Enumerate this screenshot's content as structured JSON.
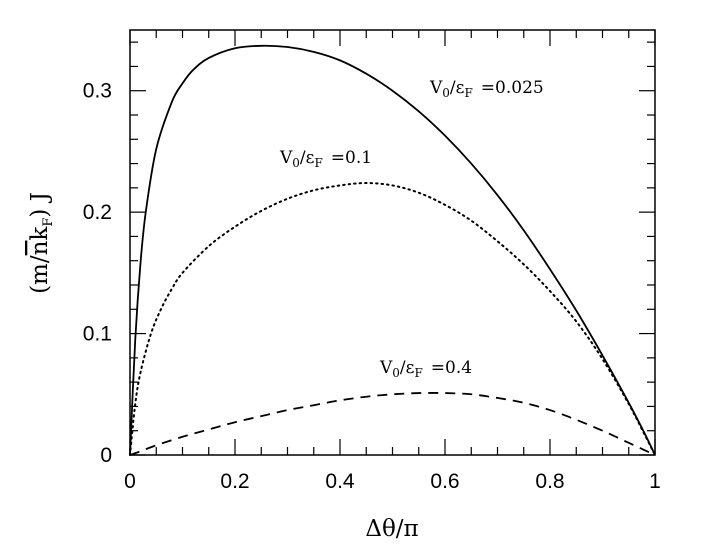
{
  "chart_data": {
    "type": "line",
    "title": "",
    "xlabel": "Δθ/π",
    "ylabel": "(m/n̄k_F) J",
    "ylabel_parts": {
      "open": "(m/",
      "nbar": "n",
      "k": "k",
      "sub": "F",
      "close": ") J"
    },
    "xlim": [
      0,
      1
    ],
    "ylim": [
      0,
      0.35
    ],
    "x_ticks": [
      0,
      0.2,
      0.4,
      0.6,
      0.8,
      1
    ],
    "x_tick_labels": [
      "0",
      "0.2",
      "0.4",
      "0.6",
      "0.8",
      "1"
    ],
    "y_ticks": [
      0,
      0.1,
      0.2,
      0.3
    ],
    "y_tick_labels": [
      "0",
      "0.1",
      "0.2",
      "0.3"
    ],
    "grid": false,
    "legend": "none",
    "series": [
      {
        "label_parts": {
          "v": "V",
          "vsub": "0",
          "slash": "/",
          "eps": "ε",
          "esub": "F",
          "eq": "=0.025"
        },
        "style": "solid",
        "x": [
          0,
          0.01,
          0.02,
          0.03,
          0.05,
          0.08,
          0.1,
          0.12,
          0.15,
          0.2,
          0.25,
          0.3,
          0.35,
          0.4,
          0.45,
          0.5,
          0.55,
          0.6,
          0.65,
          0.7,
          0.75,
          0.8,
          0.85,
          0.9,
          0.95,
          0.98,
          1.0
        ],
        "y": [
          0,
          0.095,
          0.158,
          0.2,
          0.252,
          0.291,
          0.306,
          0.317,
          0.327,
          0.335,
          0.337,
          0.336,
          0.332,
          0.325,
          0.314,
          0.3,
          0.283,
          0.263,
          0.24,
          0.214,
          0.185,
          0.153,
          0.119,
          0.082,
          0.043,
          0.018,
          0
        ]
      },
      {
        "label_parts": {
          "v": "V",
          "vsub": "0",
          "slash": "/",
          "eps": "ε",
          "esub": "F",
          "eq": "=0.1"
        },
        "style": "dotted",
        "x": [
          0,
          0.01,
          0.02,
          0.04,
          0.06,
          0.08,
          0.1,
          0.15,
          0.2,
          0.25,
          0.3,
          0.35,
          0.4,
          0.45,
          0.5,
          0.55,
          0.6,
          0.65,
          0.7,
          0.75,
          0.8,
          0.85,
          0.9,
          0.95,
          0.98,
          1.0
        ],
        "y": [
          0,
          0.042,
          0.068,
          0.1,
          0.121,
          0.137,
          0.15,
          0.172,
          0.188,
          0.201,
          0.211,
          0.218,
          0.222,
          0.224,
          0.222,
          0.216,
          0.206,
          0.193,
          0.176,
          0.157,
          0.135,
          0.11,
          0.079,
          0.042,
          0.017,
          0
        ]
      },
      {
        "label_parts": {
          "v": "V",
          "vsub": "0",
          "slash": "/",
          "eps": "ε",
          "esub": "F",
          "eq": "=0.4"
        },
        "style": "dashed",
        "x": [
          0,
          0.02,
          0.05,
          0.1,
          0.15,
          0.2,
          0.25,
          0.3,
          0.35,
          0.4,
          0.45,
          0.5,
          0.55,
          0.6,
          0.65,
          0.7,
          0.75,
          0.8,
          0.85,
          0.9,
          0.95,
          1.0
        ],
        "y": [
          0,
          0.003,
          0.008,
          0.015,
          0.021,
          0.027,
          0.032,
          0.037,
          0.041,
          0.045,
          0.048,
          0.05,
          0.051,
          0.051,
          0.05,
          0.047,
          0.043,
          0.037,
          0.029,
          0.02,
          0.01,
          0
        ]
      }
    ]
  }
}
